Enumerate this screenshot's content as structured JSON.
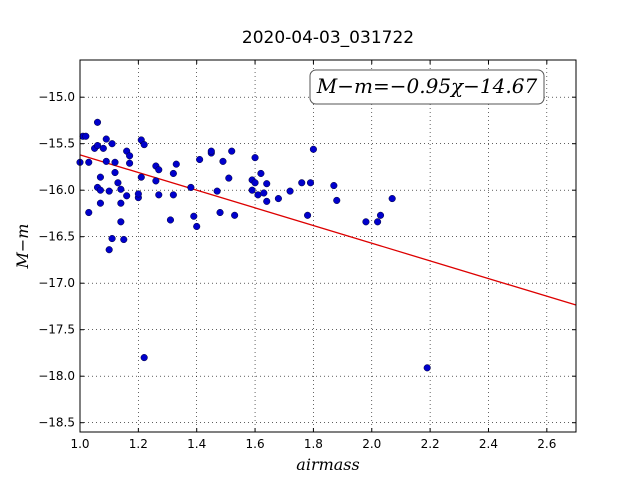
{
  "chart_data": {
    "type": "scatter",
    "title": "2020-04-03_031722",
    "xlabel": "airmass",
    "ylabel": "M−m",
    "xlim": [
      1.0,
      2.7
    ],
    "ylim": [
      -18.6,
      -14.6
    ],
    "y_inverted": true,
    "grid": true,
    "grid_style": "dotted",
    "xticks": [
      "1.0",
      "1.2",
      "1.4",
      "1.6",
      "1.8",
      "2.0",
      "2.2",
      "2.4",
      "2.6"
    ],
    "yticks": [
      "−15.0",
      "−15.5",
      "−16.0",
      "−16.5",
      "−17.0",
      "−17.5",
      "−18.0",
      "−18.5"
    ],
    "annotation": "M−m=−0.95χ−14.67",
    "fit_line": {
      "slope": -0.95,
      "intercept": -14.67,
      "color": "#dd0000"
    },
    "point_color": "#0000cc",
    "points": [
      {
        "x": 1.0,
        "y": -15.7
      },
      {
        "x": 1.01,
        "y": -15.42
      },
      {
        "x": 1.02,
        "y": -15.42
      },
      {
        "x": 1.03,
        "y": -15.7
      },
      {
        "x": 1.03,
        "y": -16.24
      },
      {
        "x": 1.05,
        "y": -15.55
      },
      {
        "x": 1.06,
        "y": -15.27
      },
      {
        "x": 1.06,
        "y": -15.52
      },
      {
        "x": 1.07,
        "y": -15.86
      },
      {
        "x": 1.06,
        "y": -15.97
      },
      {
        "x": 1.07,
        "y": -16.0
      },
      {
        "x": 1.07,
        "y": -16.14
      },
      {
        "x": 1.08,
        "y": -15.55
      },
      {
        "x": 1.09,
        "y": -15.45
      },
      {
        "x": 1.09,
        "y": -15.69
      },
      {
        "x": 1.1,
        "y": -16.01
      },
      {
        "x": 1.1,
        "y": -16.64
      },
      {
        "x": 1.11,
        "y": -16.52
      },
      {
        "x": 1.11,
        "y": -15.5
      },
      {
        "x": 1.12,
        "y": -15.7
      },
      {
        "x": 1.12,
        "y": -15.81
      },
      {
        "x": 1.13,
        "y": -15.92
      },
      {
        "x": 1.14,
        "y": -15.99
      },
      {
        "x": 1.14,
        "y": -16.14
      },
      {
        "x": 1.14,
        "y": -16.34
      },
      {
        "x": 1.15,
        "y": -16.53
      },
      {
        "x": 1.16,
        "y": -15.58
      },
      {
        "x": 1.16,
        "y": -16.06
      },
      {
        "x": 1.17,
        "y": -15.63
      },
      {
        "x": 1.17,
        "y": -15.71
      },
      {
        "x": 1.2,
        "y": -16.08
      },
      {
        "x": 1.2,
        "y": -16.04
      },
      {
        "x": 1.21,
        "y": -15.46
      },
      {
        "x": 1.22,
        "y": -15.51
      },
      {
        "x": 1.21,
        "y": -15.86
      },
      {
        "x": 1.22,
        "y": -17.8
      },
      {
        "x": 1.26,
        "y": -15.74
      },
      {
        "x": 1.26,
        "y": -15.9
      },
      {
        "x": 1.27,
        "y": -15.78
      },
      {
        "x": 1.27,
        "y": -16.05
      },
      {
        "x": 1.31,
        "y": -16.32
      },
      {
        "x": 1.32,
        "y": -15.82
      },
      {
        "x": 1.33,
        "y": -15.72
      },
      {
        "x": 1.32,
        "y": -16.05
      },
      {
        "x": 1.38,
        "y": -15.97
      },
      {
        "x": 1.39,
        "y": -16.28
      },
      {
        "x": 1.4,
        "y": -16.39
      },
      {
        "x": 1.41,
        "y": -15.67
      },
      {
        "x": 1.45,
        "y": -15.6
      },
      {
        "x": 1.45,
        "y": -15.58
      },
      {
        "x": 1.47,
        "y": -16.01
      },
      {
        "x": 1.48,
        "y": -16.24
      },
      {
        "x": 1.49,
        "y": -15.69
      },
      {
        "x": 1.51,
        "y": -15.87
      },
      {
        "x": 1.52,
        "y": -15.58
      },
      {
        "x": 1.53,
        "y": -16.27
      },
      {
        "x": 1.59,
        "y": -16.0
      },
      {
        "x": 1.59,
        "y": -15.89
      },
      {
        "x": 1.6,
        "y": -15.92
      },
      {
        "x": 1.6,
        "y": -15.65
      },
      {
        "x": 1.61,
        "y": -16.05
      },
      {
        "x": 1.62,
        "y": -15.82
      },
      {
        "x": 1.63,
        "y": -16.03
      },
      {
        "x": 1.64,
        "y": -15.93
      },
      {
        "x": 1.64,
        "y": -16.12
      },
      {
        "x": 1.68,
        "y": -16.09
      },
      {
        "x": 1.72,
        "y": -16.01
      },
      {
        "x": 1.76,
        "y": -15.92
      },
      {
        "x": 1.78,
        "y": -16.27
      },
      {
        "x": 1.79,
        "y": -15.92
      },
      {
        "x": 1.8,
        "y": -15.56
      },
      {
        "x": 1.87,
        "y": -15.95
      },
      {
        "x": 1.88,
        "y": -16.11
      },
      {
        "x": 1.98,
        "y": -16.34
      },
      {
        "x": 2.02,
        "y": -16.34
      },
      {
        "x": 2.03,
        "y": -16.27
      },
      {
        "x": 2.07,
        "y": -16.09
      },
      {
        "x": 2.19,
        "y": -17.91
      }
    ]
  }
}
